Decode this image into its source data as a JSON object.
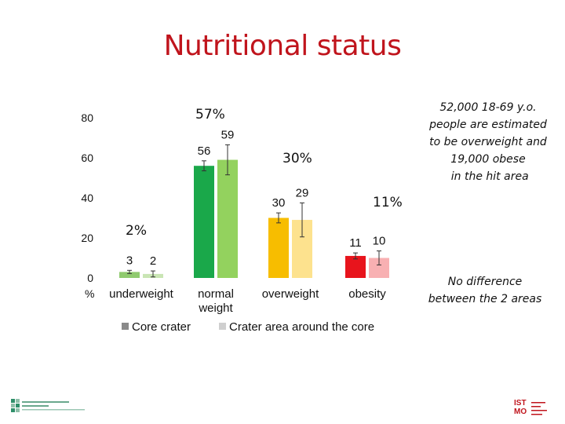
{
  "title": "Nutritional status",
  "chart_data": {
    "type": "bar",
    "categories": [
      "underweight",
      "normal weight",
      "overweight",
      "obesity"
    ],
    "category_lines": [
      [
        "underweight"
      ],
      [
        "normal",
        "weight"
      ],
      [
        "overweight"
      ],
      [
        "obesity"
      ]
    ],
    "series": [
      {
        "name": "Core crater",
        "values": [
          3,
          56,
          30,
          11
        ],
        "errors": [
          0.8,
          2.5,
          2.5,
          1.5
        ],
        "colors": [
          "#8fca6e",
          "#1aa84a",
          "#f7bd00",
          "#e8141c"
        ]
      },
      {
        "name": "Crater area around the core",
        "values": [
          2,
          59,
          29,
          10
        ],
        "errors": [
          1.5,
          7.5,
          8.5,
          3.5
        ],
        "colors": [
          "#c9e5b4",
          "#93d25e",
          "#fde28e",
          "#f8b0b2"
        ]
      }
    ],
    "y_ticks": [
      0,
      20,
      40,
      60,
      80
    ],
    "ylim": [
      0,
      80
    ],
    "ylabel": "%",
    "legend_position": "bottom",
    "legend_swatches": [
      "#8a8a8a",
      "#cfcfcf"
    ],
    "group_percentages": [
      "2%",
      "57%",
      "30%",
      "11%"
    ]
  },
  "notes": {
    "top_lines": [
      "52,000 18-69 y.o.",
      "people are estimated",
      "to be overweight and",
      "19,000 obese",
      " in the hit area"
    ],
    "bottom_lines": [
      "No difference",
      "between the 2 areas"
    ]
  },
  "logos": {
    "left_name": "centro-logo",
    "right_lines": [
      "IST",
      "MO"
    ]
  }
}
